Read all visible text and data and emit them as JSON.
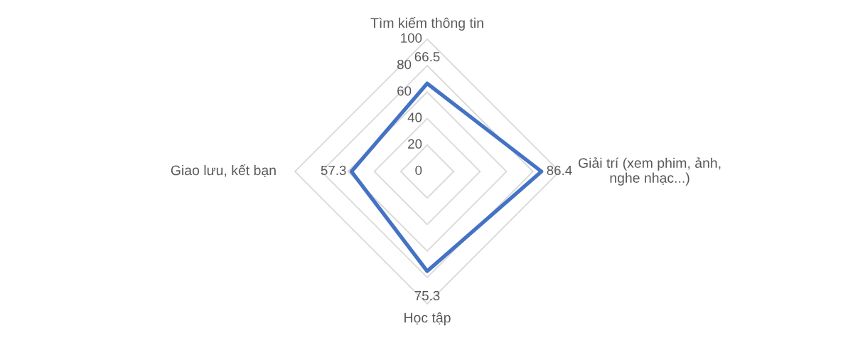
{
  "chart_data": {
    "type": "radar",
    "categories": [
      "Tìm kiếm thông tin",
      "Giải trí (xem phim, ảnh,\nnghe nhạc...)",
      "Học tập",
      "Giao lưu, kết bạn"
    ],
    "series": [
      {
        "color": "#4472c4",
        "values": [
          66.5,
          86.4,
          75.3,
          57.3
        ]
      }
    ],
    "ylim": [
      0,
      100
    ],
    "yticks": [
      0,
      20,
      40,
      60,
      80,
      100
    ],
    "grid": true,
    "data_labels": true
  }
}
